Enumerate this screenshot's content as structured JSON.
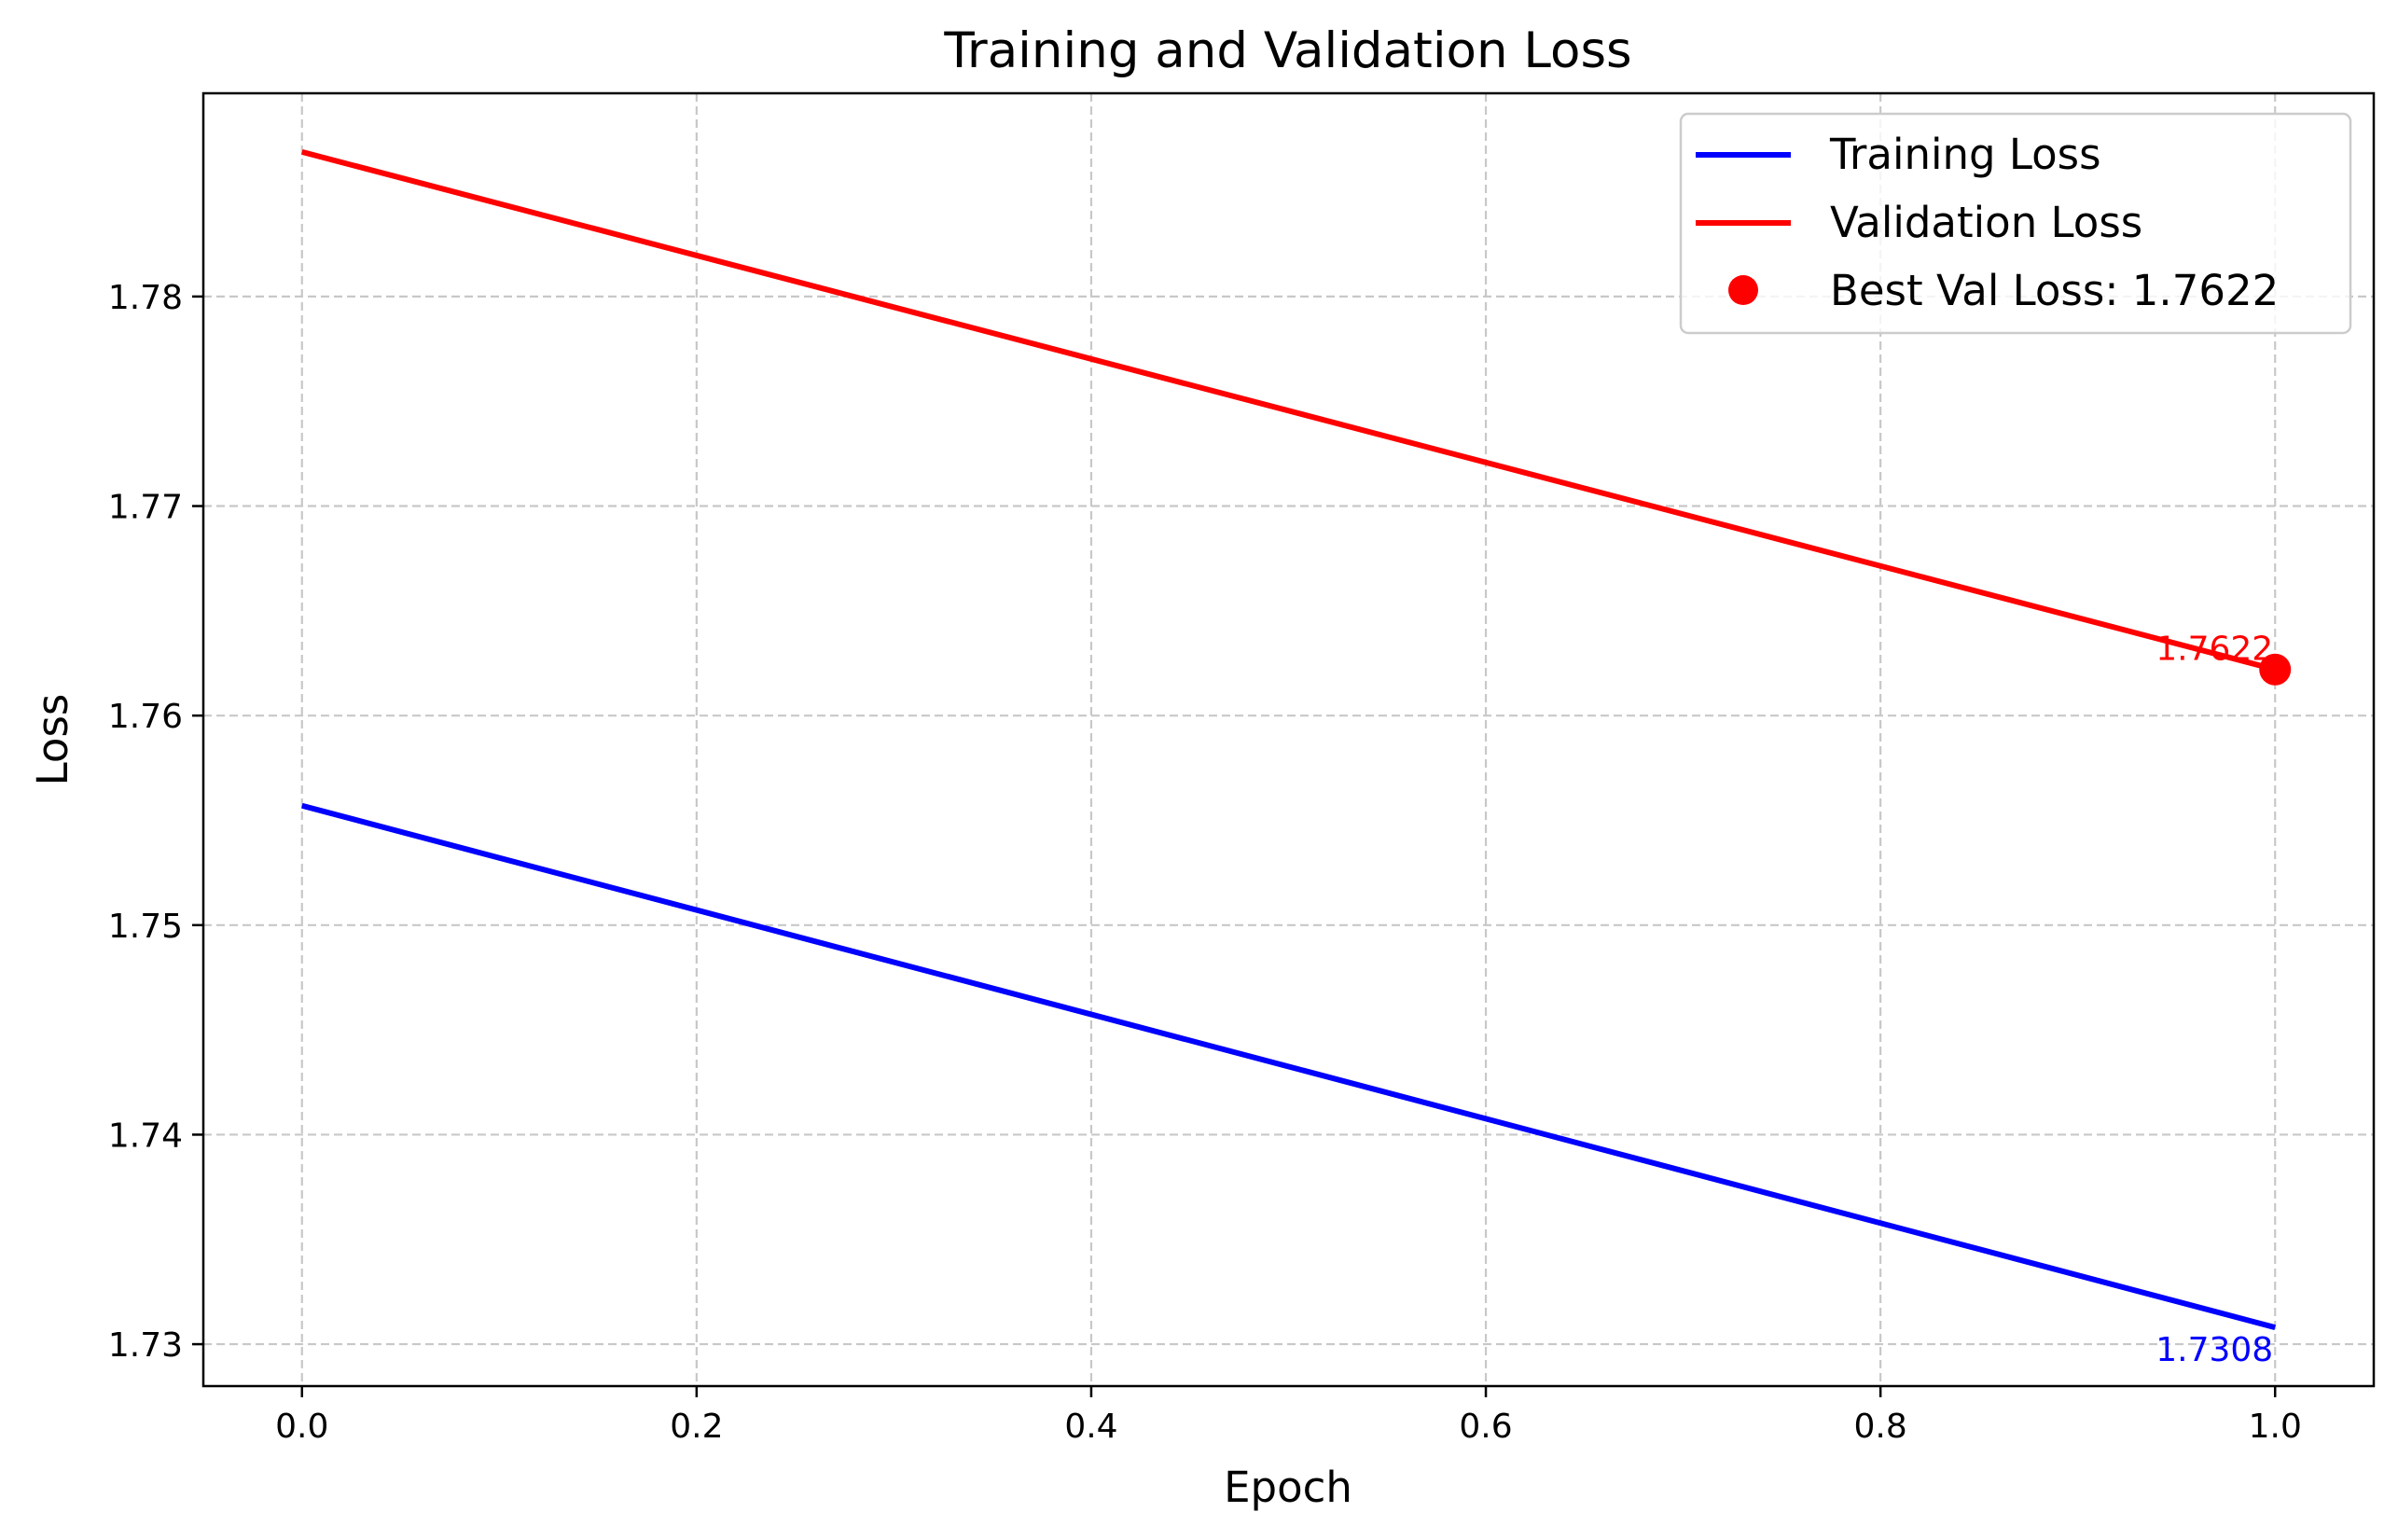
{
  "chart_data": {
    "type": "line",
    "title": "Training and Validation Loss",
    "xlabel": "Epoch",
    "ylabel": "Loss",
    "xlim": [
      -0.05,
      1.05
    ],
    "ylim": [
      1.728,
      1.7897
    ],
    "grid": true,
    "grid_style": "dashed",
    "legend_position": "top-right",
    "x_ticks": [
      0.0,
      0.2,
      0.4,
      0.6,
      0.8,
      1.0
    ],
    "x_tick_labels": [
      "0.0",
      "0.2",
      "0.4",
      "0.6",
      "0.8",
      "1.0"
    ],
    "y_ticks": [
      1.73,
      1.74,
      1.75,
      1.76,
      1.77,
      1.78
    ],
    "y_tick_labels": [
      "1.73",
      "1.74",
      "1.75",
      "1.76",
      "1.77",
      "1.78"
    ],
    "series": [
      {
        "name": "Training Loss",
        "color": "#0000ff",
        "x": [
          0,
          1
        ],
        "y": [
          1.7557,
          1.7308
        ]
      },
      {
        "name": "Validation Loss",
        "color": "#ff0000",
        "x": [
          0,
          1
        ],
        "y": [
          1.7869,
          1.7622
        ]
      }
    ],
    "best_point": {
      "label": "Best Val Loss: 1.7622",
      "x": 1,
      "y": 1.7622,
      "color": "#ff0000"
    },
    "annotations": [
      {
        "text": "1.7622",
        "x": 1,
        "y": 1.7622,
        "color": "#ff0000",
        "placement": "above-left"
      },
      {
        "text": "1.7308",
        "x": 1,
        "y": 1.7308,
        "color": "#0000ff",
        "placement": "below-left"
      }
    ]
  }
}
